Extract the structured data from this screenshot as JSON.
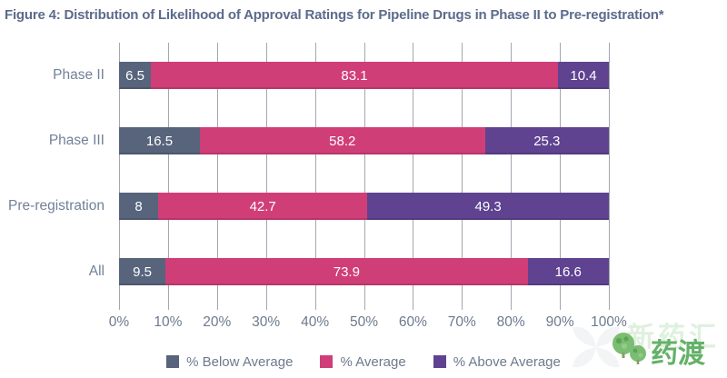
{
  "title": "Figure 4: Distribution of Likelihood of Approval Ratings for Pipeline Drugs in Phase II to Pre-registration*",
  "chart_data": {
    "type": "bar",
    "orientation": "horizontal",
    "stacked": true,
    "title": "Figure 4: Distribution of Likelihood of Approval Ratings for Pipeline Drugs in Phase II to Pre-registration*",
    "categories": [
      "Phase II",
      "Phase III",
      "Pre-registration",
      "All"
    ],
    "series": [
      {
        "name": "% Below Average",
        "color": "#57647c",
        "values": [
          6.5,
          16.5,
          8,
          9.5
        ],
        "labels": [
          "6.5",
          "16.5",
          "8",
          "9.5"
        ]
      },
      {
        "name": "% Average",
        "color": "#d03e78",
        "values": [
          83.1,
          58.2,
          42.7,
          73.9
        ],
        "labels": [
          "83.1",
          "58.2",
          "42.7",
          "73.9"
        ]
      },
      {
        "name": "% Above Average",
        "color": "#5f4391",
        "values": [
          10.4,
          25.3,
          49.3,
          16.6
        ],
        "labels": [
          "10.4",
          "25.3",
          "49.3",
          "16.6"
        ]
      }
    ],
    "x_ticks": [
      "0%",
      "10%",
      "20%",
      "30%",
      "40%",
      "50%",
      "60%",
      "70%",
      "80%",
      "90%",
      "100%"
    ],
    "xlim": [
      0,
      100
    ],
    "grid": "vertical",
    "legend_position": "bottom"
  },
  "colors": {
    "title_text": "#5b6b8b",
    "axis_text": "#6d7a8e",
    "category_text": "#72809a",
    "gridline": "#a3a7ae",
    "bar_value_text": "#ffffff",
    "brand_green": "#64b168"
  },
  "watermark": {
    "brand": "药渡",
    "faint_text": "新药汇",
    "icon": "trees-icon"
  }
}
